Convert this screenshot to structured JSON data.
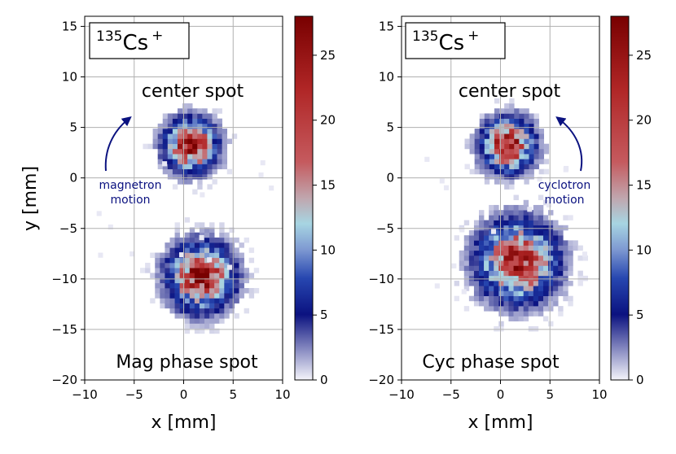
{
  "chart_data": [
    {
      "type": "heatmap",
      "panel": "left",
      "xlabel": "x [mm]",
      "ylabel": "y [mm]",
      "xlim": [
        -10,
        10
      ],
      "ylim": [
        -20,
        16
      ],
      "xticks": [
        -10,
        -5,
        0,
        5,
        10
      ],
      "yticks": [
        -20,
        -15,
        -10,
        -5,
        0,
        5,
        10,
        15
      ],
      "grid": true,
      "ion_label": {
        "mass": "135",
        "element": "Cs",
        "charge": "+"
      },
      "annotations": {
        "top": "center spot",
        "bottom": "Mag phase spot",
        "motion_lines": [
          "magnetron",
          "motion"
        ],
        "arrow_direction": "counterclockwise"
      },
      "spots": [
        {
          "name": "center spot",
          "cx": 0.5,
          "cy": 3.0,
          "sigma": 1.6,
          "peak": 27
        },
        {
          "name": "Mag phase spot",
          "cx": 1.5,
          "cy": -10.0,
          "sigma": 2.0,
          "peak": 27
        }
      ],
      "colorbar": {
        "min": 0,
        "max": 28,
        "ticks": [
          0,
          5,
          10,
          15,
          20,
          25
        ]
      }
    },
    {
      "type": "heatmap",
      "panel": "right",
      "xlabel": "x [mm]",
      "ylabel": "",
      "xlim": [
        -10,
        10
      ],
      "ylim": [
        -20,
        16
      ],
      "xticks": [
        -10,
        -5,
        0,
        5,
        10
      ],
      "yticks": [
        -20,
        -15,
        -10,
        -5,
        0,
        5,
        10,
        15
      ],
      "grid": true,
      "ion_label": {
        "mass": "135",
        "element": "Cs",
        "charge": "+"
      },
      "annotations": {
        "top": "center spot",
        "bottom": "Cyc phase spot",
        "motion_lines": [
          "cyclotron",
          "motion"
        ],
        "arrow_direction": "clockwise"
      },
      "spots": [
        {
          "name": "center spot",
          "cx": 0.5,
          "cy": 3.0,
          "sigma": 1.6,
          "peak": 27
        },
        {
          "name": "Cyc phase spot",
          "cx": 1.5,
          "cy": -8.5,
          "sigma": 2.4,
          "peak": 26
        }
      ],
      "colorbar": {
        "min": 0,
        "max": 28,
        "ticks": [
          0,
          5,
          10,
          15,
          20,
          25
        ]
      }
    }
  ]
}
